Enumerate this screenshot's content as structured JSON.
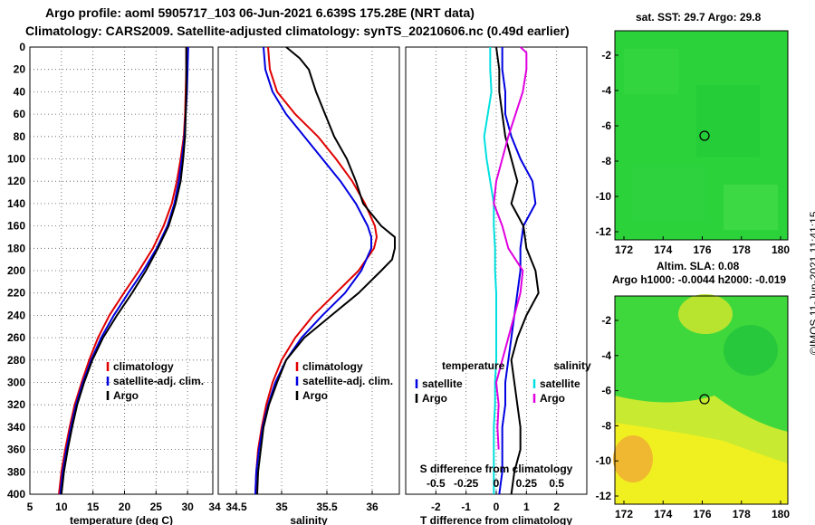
{
  "header": {
    "line1": "Argo profile: aoml 5905717_103 06-Jun-2021 6.639S 175.28E (NRT data)",
    "line2": "Climatology: CARS2009. Satellite-adjusted climatology: synTS_20210606.nc (0.49d earlier)"
  },
  "maps": {
    "sst_title": "sat. SST: 29.7 Argo: 29.8",
    "sla_title1": "Altim. SLA: 0.08",
    "sla_title2": "Argo h1000: -0.0044 h2000: -0.019",
    "timestamp": "©IMOS 11-Jun-2021 11:41:15",
    "x_ticks": [
      "172",
      "174",
      "176",
      "178",
      "180"
    ],
    "y_ticks": [
      "-2",
      "-4",
      "-6",
      "-8",
      "-10",
      "-12"
    ],
    "colors": {
      "sst_green": "#2bd23a",
      "sla_green": "#3fd83c",
      "sla_yellow": "#f0f020",
      "sla_orange": "#f0b830"
    }
  },
  "chart_data": [
    {
      "type": "line",
      "title": "",
      "xlabel": "temperature (deg C)",
      "ylabel": "",
      "xlim": [
        5,
        34
      ],
      "ylim": [
        400,
        0
      ],
      "x_ticks": [
        5,
        10,
        15,
        20,
        25,
        30
      ],
      "y_ticks": [
        0,
        20,
        40,
        60,
        80,
        100,
        120,
        140,
        160,
        180,
        200,
        220,
        240,
        260,
        280,
        300,
        320,
        340,
        360,
        380,
        400
      ],
      "legend": [
        "climatology",
        "satellite-adj. clim.",
        "Argo"
      ],
      "legend_colors": [
        "#e00000",
        "#0000e0",
        "#000000"
      ],
      "series": [
        {
          "name": "climatology",
          "color": "#e00000",
          "depth": [
            0,
            20,
            40,
            60,
            80,
            100,
            120,
            140,
            160,
            180,
            200,
            220,
            240,
            260,
            280,
            300,
            320,
            340,
            360,
            380,
            400
          ],
          "values": [
            29.8,
            29.8,
            29.7,
            29.6,
            29.4,
            28.9,
            28.3,
            27.5,
            26.2,
            24.5,
            22.3,
            19.9,
            17.6,
            15.8,
            14.4,
            13.2,
            12.1,
            11.3,
            10.6,
            10.0,
            9.6
          ]
        },
        {
          "name": "satellite-adj. clim.",
          "color": "#0000e0",
          "depth": [
            0,
            20,
            40,
            60,
            80,
            100,
            120,
            140,
            160,
            180,
            200,
            220,
            240,
            260,
            280,
            300,
            320,
            340,
            360,
            380,
            400
          ],
          "values": [
            30.1,
            30.0,
            29.9,
            29.7,
            29.5,
            29.1,
            28.6,
            27.9,
            26.8,
            25.1,
            23.0,
            20.6,
            18.3,
            16.3,
            14.7,
            13.4,
            12.3,
            11.5,
            10.8,
            10.2,
            9.8
          ]
        },
        {
          "name": "Argo",
          "color": "#000000",
          "depth": [
            0,
            20,
            40,
            60,
            80,
            100,
            120,
            140,
            160,
            180,
            200,
            220,
            240,
            260,
            280,
            300,
            320,
            340,
            360,
            380,
            400
          ],
          "values": [
            29.8,
            29.8,
            29.8,
            29.7,
            29.6,
            29.3,
            28.9,
            28.1,
            27.0,
            25.3,
            23.4,
            21.2,
            18.8,
            16.6,
            14.9,
            13.6,
            12.5,
            11.7,
            11.0,
            10.4,
            10.0
          ]
        }
      ]
    },
    {
      "type": "line",
      "xlabel": "salinity",
      "xlim": [
        34.3,
        36.3
      ],
      "ylim": [
        400,
        0
      ],
      "x_ticks": [
        34.5,
        35,
        35.5,
        36
      ],
      "x_tick_labels": [
        "34.5",
        "35",
        "35.5",
        "36"
      ],
      "legend": [
        "climatology",
        "satellite-adj. clim.",
        "Argo"
      ],
      "legend_colors": [
        "#e00000",
        "#0000e0",
        "#000000"
      ],
      "series": [
        {
          "name": "climatology",
          "color": "#e00000",
          "depth": [
            0,
            20,
            40,
            60,
            80,
            100,
            120,
            140,
            160,
            170,
            180,
            200,
            220,
            240,
            260,
            280,
            300,
            320,
            340,
            360,
            380,
            400
          ],
          "values": [
            34.85,
            34.87,
            34.95,
            35.15,
            35.4,
            35.6,
            35.78,
            35.92,
            36.03,
            36.05,
            36.02,
            35.85,
            35.6,
            35.35,
            35.15,
            35.0,
            34.9,
            34.83,
            34.78,
            34.74,
            34.72,
            34.71
          ]
        },
        {
          "name": "satellite-adj. clim.",
          "color": "#0000e0",
          "depth": [
            0,
            20,
            40,
            60,
            80,
            100,
            120,
            140,
            160,
            170,
            180,
            200,
            220,
            240,
            260,
            280,
            300,
            320,
            340,
            360,
            380,
            400
          ],
          "values": [
            34.8,
            34.82,
            34.9,
            35.05,
            35.25,
            35.45,
            35.65,
            35.82,
            35.95,
            35.99,
            35.99,
            35.88,
            35.7,
            35.45,
            35.22,
            35.05,
            34.93,
            34.85,
            34.79,
            34.75,
            34.72,
            34.71
          ]
        },
        {
          "name": "Argo",
          "color": "#000000",
          "depth": [
            0,
            10,
            20,
            40,
            60,
            80,
            100,
            120,
            140,
            160,
            170,
            180,
            190,
            200,
            220,
            240,
            260,
            280,
            300,
            320,
            340,
            360,
            380,
            400
          ],
          "values": [
            35.05,
            35.2,
            35.3,
            35.38,
            35.48,
            35.58,
            35.72,
            35.82,
            35.9,
            36.1,
            36.25,
            36.25,
            36.22,
            36.1,
            35.85,
            35.55,
            35.25,
            35.05,
            34.95,
            34.86,
            34.8,
            34.77,
            34.74,
            34.73
          ]
        }
      ]
    },
    {
      "type": "line",
      "xlabel": "T difference from climatology",
      "top_xlabel": "S difference from climatology",
      "xlim": [
        -3,
        3
      ],
      "ylim": [
        400,
        0
      ],
      "x_ticks": [
        -2,
        -1,
        0,
        1,
        2
      ],
      "x_tick_labels": [
        "-2",
        "-1",
        "0",
        "1",
        "2"
      ],
      "top_x_tick_labels": [
        "-0.5",
        "-0.25",
        "0",
        "0.25",
        "0.5"
      ],
      "legend_left_title": "temperature",
      "legend_right_title": "salinity",
      "legend_left": [
        "satellite",
        "Argo"
      ],
      "legend_right": [
        "satellite",
        "Argo"
      ],
      "legend_left_colors": [
        "#0000e0",
        "#000000"
      ],
      "legend_right_colors": [
        "#00e0e0",
        "#e000e0"
      ],
      "series": [
        {
          "name": "T satellite",
          "color": "#0000e0",
          "depth": [
            0,
            20,
            40,
            60,
            80,
            100,
            120,
            140,
            160,
            180,
            200,
            220,
            240,
            260,
            280,
            300,
            320,
            340,
            360,
            380,
            400
          ],
          "values": [
            0.2,
            0.2,
            0.3,
            0.3,
            0.5,
            0.8,
            1.2,
            1.3,
            0.9,
            0.8,
            0.8,
            0.7,
            0.6,
            0.5,
            0.4,
            0.3,
            0.3,
            0.2,
            0.2,
            0.2,
            0.1
          ]
        },
        {
          "name": "T Argo",
          "color": "#000000",
          "depth": [
            0,
            20,
            40,
            60,
            80,
            100,
            120,
            140,
            160,
            180,
            200,
            220,
            240,
            260,
            280,
            300,
            320,
            340,
            360,
            380,
            400
          ],
          "values": [
            0.0,
            0.1,
            0.1,
            0.2,
            0.3,
            0.5,
            0.7,
            0.5,
            0.9,
            1.0,
            1.3,
            1.4,
            1.0,
            0.7,
            0.5,
            0.6,
            0.7,
            0.8,
            0.8,
            0.6,
            0.5
          ]
        },
        {
          "name": "S satellite",
          "color": "#00e0e0",
          "depth": [
            0,
            20,
            40,
            60,
            80,
            100,
            120,
            140,
            160,
            180,
            200,
            220,
            240,
            260,
            280,
            300,
            320,
            340,
            360,
            380,
            400
          ],
          "values": [
            -0.05,
            -0.05,
            -0.04,
            -0.07,
            -0.1,
            -0.08,
            -0.05,
            -0.02,
            -0.02,
            -0.01,
            -0.01,
            0.0,
            0.0,
            0.0,
            0.0,
            -0.01,
            -0.01,
            -0.02,
            -0.02,
            -0.02,
            -0.02
          ]
        },
        {
          "name": "S Argo",
          "color": "#e000e0",
          "depth": [
            0,
            5,
            20,
            40,
            60,
            80,
            100,
            120,
            140,
            160,
            180,
            200,
            220,
            240,
            260,
            280,
            300,
            320,
            340,
            360
          ],
          "values": [
            0.2,
            0.25,
            0.25,
            0.22,
            0.16,
            0.1,
            0.05,
            0.0,
            -0.02,
            0.05,
            0.1,
            0.22,
            0.2,
            0.15,
            0.1,
            0.05,
            0.0,
            0.02,
            0.01,
            0.02
          ]
        }
      ]
    }
  ]
}
